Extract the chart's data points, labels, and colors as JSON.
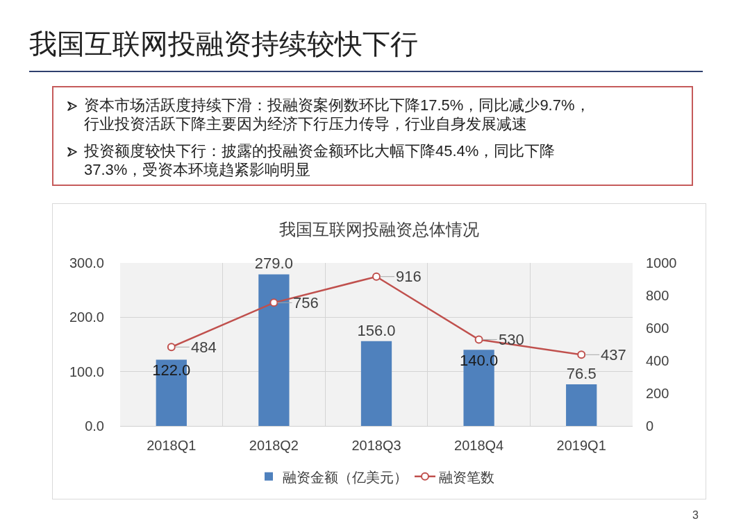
{
  "chart_data": {
    "type": "bar",
    "title": "我国互联网投融资持续较快下行",
    "subtitle": "我国互联网投融资总体情况",
    "annotations": [
      "资本市场活跃度持续下滑：投融资案例数环比下降17.5%，同比减少9.7%，行业投资活跃下降主要因为经济下行压力传导，行业自身发展减速",
      "投资额度较快下行：披露的投融资金额环比大幅下降45.4%，同比下降37.3%，受资本环境趋紧影响明显",
      "3"
    ],
    "categories": [
      "2018Q1",
      "2018Q2",
      "2018Q3",
      "2018Q4",
      "2019Q1"
    ],
    "series": [
      {
        "name": "融资金额（亿美元）",
        "color": "#4f81bd",
        "values": [
          122.0,
          279.0,
          156.0,
          140.0,
          76.5
        ],
        "value_labels": [
          "122.0",
          "279.0",
          "156.0",
          "140.0",
          "76.5"
        ]
      },
      {
        "name": "融资笔数",
        "type": "line",
        "axis": "y2",
        "color": "#c0504d",
        "marker": "circle",
        "values": [
          484,
          756,
          916,
          530,
          437
        ],
        "value_labels": [
          "484",
          "756",
          "916",
          "530",
          "437"
        ]
      }
    ],
    "ylim": [
      0,
      300
    ],
    "yticks": [
      {
        "value": 0,
        "label": "0.0"
      },
      {
        "value": 100,
        "label": "100.0"
      },
      {
        "value": 200,
        "label": "200.0"
      },
      {
        "value": 300,
        "label": "300.0"
      }
    ],
    "y2lim": [
      0,
      1000
    ],
    "y2ticks": [
      0,
      200,
      400,
      600,
      800,
      1000
    ],
    "grid": true,
    "legend": "bottom"
  }
}
